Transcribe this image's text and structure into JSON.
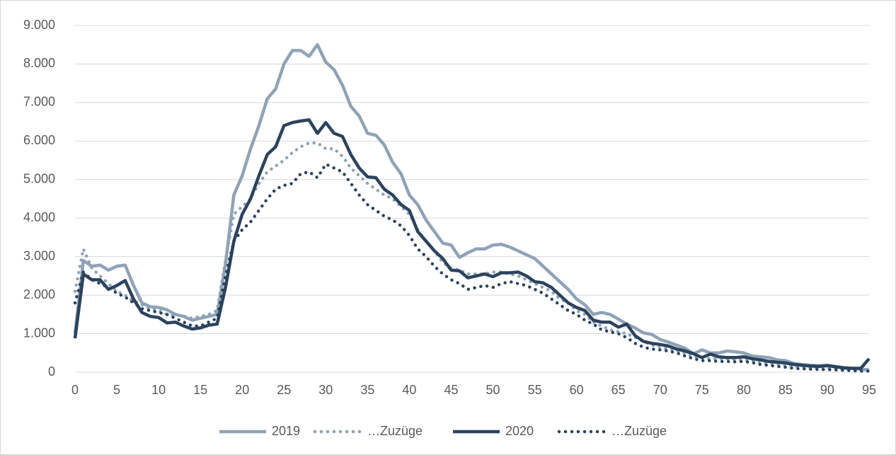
{
  "chart_data": {
    "type": "line",
    "x": [
      0,
      1,
      2,
      3,
      4,
      5,
      6,
      7,
      8,
      9,
      10,
      11,
      12,
      13,
      14,
      15,
      16,
      17,
      18,
      19,
      20,
      21,
      22,
      23,
      24,
      25,
      26,
      27,
      28,
      29,
      30,
      31,
      32,
      33,
      34,
      35,
      36,
      37,
      38,
      39,
      40,
      41,
      42,
      43,
      44,
      45,
      46,
      47,
      48,
      49,
      50,
      51,
      52,
      53,
      54,
      55,
      56,
      57,
      58,
      59,
      60,
      61,
      62,
      63,
      64,
      65,
      66,
      67,
      68,
      69,
      70,
      71,
      72,
      73,
      74,
      75,
      76,
      77,
      78,
      79,
      80,
      81,
      82,
      83,
      84,
      85,
      86,
      87,
      88,
      89,
      90,
      91,
      92,
      93,
      94,
      95
    ],
    "series": [
      {
        "name": "2019",
        "color": "#8fa3b6",
        "style": "solid",
        "values": [
          1000,
          2900,
          2750,
          2780,
          2650,
          2750,
          2780,
          2250,
          1800,
          1700,
          1680,
          1620,
          1500,
          1450,
          1350,
          1400,
          1450,
          1500,
          2800,
          4600,
          5100,
          5800,
          6400,
          7100,
          7350,
          8000,
          8350,
          8350,
          8200,
          8500,
          8050,
          7850,
          7450,
          6900,
          6650,
          6200,
          6150,
          5900,
          5450,
          5150,
          4600,
          4350,
          3950,
          3650,
          3350,
          3300,
          2980,
          3100,
          3200,
          3200,
          3300,
          3320,
          3250,
          3150,
          3050,
          2950,
          2750,
          2550,
          2350,
          2150,
          1900,
          1750,
          1500,
          1550,
          1500,
          1380,
          1250,
          1150,
          1020,
          980,
          850,
          780,
          700,
          620,
          480,
          580,
          500,
          500,
          550,
          530,
          500,
          420,
          400,
          380,
          320,
          300,
          230,
          200,
          180,
          170,
          180,
          150,
          120,
          100,
          80,
          60
        ]
      },
      {
        "name": "…Zuzüge",
        "color": "#8fa3b6",
        "style": "dotted",
        "values": [
          2100,
          3200,
          2700,
          2500,
          2300,
          2100,
          2000,
          1850,
          1750,
          1650,
          1600,
          1500,
          1500,
          1450,
          1400,
          1450,
          1500,
          1600,
          2900,
          4100,
          4300,
          4500,
          4900,
          5200,
          5350,
          5500,
          5700,
          5850,
          5950,
          5950,
          5800,
          5800,
          5600,
          5300,
          5100,
          4900,
          4750,
          4600,
          4500,
          4300,
          4100,
          3700,
          3400,
          3150,
          2850,
          2700,
          2650,
          2550,
          2550,
          2550,
          2600,
          2600,
          2550,
          2500,
          2400,
          2300,
          2200,
          2100,
          1900,
          1800,
          1600,
          1500,
          1300,
          1200,
          1100,
          1050,
          1000,
          900,
          800,
          700,
          650,
          600,
          550,
          500,
          400,
          380,
          350,
          350,
          350,
          330,
          320,
          300,
          250,
          230,
          200,
          180,
          150,
          130,
          120,
          100,
          100,
          90,
          80,
          70,
          60,
          50
        ]
      },
      {
        "name": "2020",
        "color": "#2b435d",
        "style": "solid",
        "values": [
          880,
          2550,
          2400,
          2400,
          2150,
          2250,
          2380,
          1900,
          1550,
          1450,
          1420,
          1280,
          1300,
          1200,
          1120,
          1150,
          1220,
          1250,
          2200,
          3400,
          4100,
          4500,
          5100,
          5650,
          5850,
          6400,
          6480,
          6520,
          6550,
          6200,
          6480,
          6200,
          6120,
          5650,
          5300,
          5070,
          5050,
          4750,
          4600,
          4350,
          4200,
          3650,
          3400,
          3150,
          2950,
          2650,
          2630,
          2450,
          2500,
          2550,
          2480,
          2580,
          2580,
          2600,
          2500,
          2350,
          2320,
          2200,
          2000,
          1800,
          1680,
          1600,
          1350,
          1300,
          1300,
          1170,
          1250,
          950,
          800,
          750,
          720,
          680,
          600,
          550,
          480,
          380,
          470,
          400,
          380,
          380,
          400,
          350,
          320,
          280,
          260,
          240,
          200,
          180,
          160,
          150,
          170,
          140,
          110,
          100,
          100,
          350
        ]
      },
      {
        "name": "…Zuzüge",
        "color": "#2b435d",
        "style": "dotted",
        "values": [
          1800,
          2600,
          2400,
          2300,
          2200,
          2050,
          1950,
          1800,
          1650,
          1600,
          1550,
          1500,
          1400,
          1300,
          1200,
          1200,
          1300,
          1400,
          2500,
          3400,
          3700,
          3900,
          4200,
          4500,
          4750,
          4850,
          4900,
          5150,
          5200,
          5050,
          5400,
          5300,
          5200,
          4900,
          4600,
          4350,
          4200,
          4050,
          3950,
          3800,
          3550,
          3200,
          3000,
          2750,
          2550,
          2400,
          2300,
          2150,
          2200,
          2250,
          2200,
          2300,
          2350,
          2300,
          2250,
          2150,
          2050,
          1900,
          1750,
          1600,
          1500,
          1350,
          1250,
          1100,
          1050,
          1000,
          900,
          750,
          650,
          600,
          580,
          550,
          500,
          420,
          350,
          300,
          300,
          280,
          280,
          270,
          280,
          250,
          200,
          180,
          150,
          130,
          100,
          90,
          80,
          70,
          70,
          60,
          50,
          40,
          30,
          30
        ]
      }
    ],
    "xlim": [
      0,
      95
    ],
    "xticks": [
      0,
      5,
      10,
      15,
      20,
      25,
      30,
      35,
      40,
      45,
      50,
      55,
      60,
      65,
      70,
      75,
      80,
      85,
      90,
      95
    ],
    "ylim": [
      0,
      9000
    ],
    "yticks": [
      0,
      {
        "value": 1000,
        "label": "1.000"
      },
      {
        "value": 2000,
        "label": "2.000"
      },
      {
        "value": 3000,
        "label": "3.000"
      },
      {
        "value": 4000,
        "label": "4.000"
      },
      {
        "value": 5000,
        "label": "5.000"
      },
      {
        "value": 6000,
        "label": "6.000"
      },
      {
        "value": 7000,
        "label": "7.000"
      },
      {
        "value": 8000,
        "label": "8.000"
      },
      {
        "value": 9000,
        "label": "9.000"
      }
    ],
    "grid": true,
    "legend": "bottom"
  }
}
